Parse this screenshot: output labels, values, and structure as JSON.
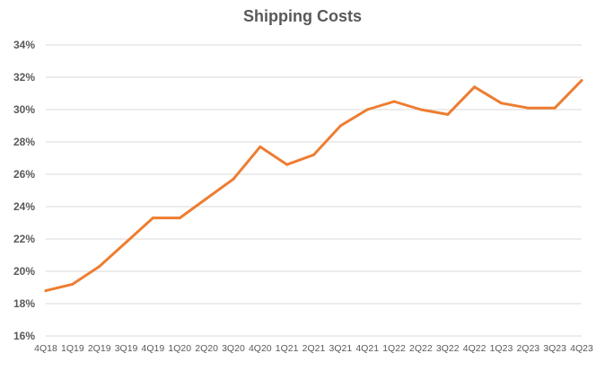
{
  "chart_data": {
    "type": "line",
    "title": "Shipping Costs",
    "xlabel": "",
    "ylabel": "",
    "categories": [
      "4Q18",
      "1Q19",
      "2Q19",
      "3Q19",
      "4Q19",
      "1Q20",
      "2Q20",
      "3Q20",
      "4Q20",
      "1Q21",
      "2Q21",
      "3Q21",
      "4Q21",
      "1Q22",
      "2Q22",
      "3Q22",
      "4Q22",
      "1Q23",
      "2Q23",
      "3Q23",
      "4Q23"
    ],
    "series": [
      {
        "color": "#ED7D31",
        "values": [
          18.8,
          19.2,
          20.3,
          21.8,
          23.3,
          23.3,
          24.5,
          25.7,
          27.7,
          26.6,
          27.2,
          29.0,
          30.0,
          30.5,
          30.0,
          29.7,
          31.4,
          30.4,
          30.1,
          30.1,
          31.8
        ]
      }
    ],
    "ylim": [
      16,
      34
    ],
    "yticks": [
      "16%",
      "18%",
      "20%",
      "22%",
      "24%",
      "26%",
      "28%",
      "30%",
      "32%",
      "34%"
    ],
    "grid": true,
    "legend": "none"
  }
}
